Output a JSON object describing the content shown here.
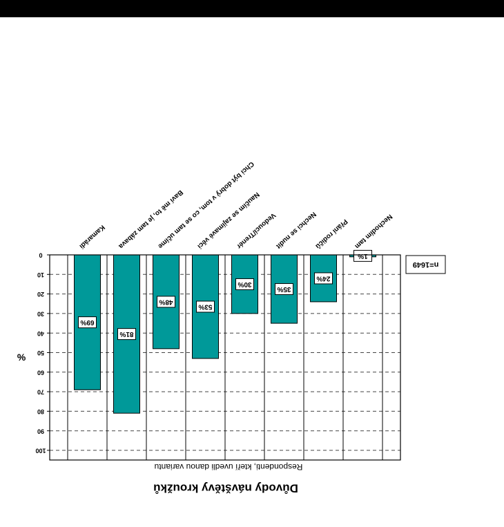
{
  "colors": {
    "bar": "#009999",
    "frame": "#000000",
    "grid": "#444444",
    "topbar": "#000000"
  },
  "chart_data": {
    "type": "bar",
    "orientation": "inverted",
    "title": "Důvody návštěvy kroužků",
    "xlabel": "Respondenti, kteří uvedli danou variantu",
    "ylabel": "%",
    "note": "n=1649",
    "ylim": [
      0,
      100
    ],
    "yticks": [
      0,
      10,
      20,
      30,
      40,
      50,
      60,
      70,
      80,
      90,
      100
    ],
    "grid": true,
    "categories": [
      "Kamarádi",
      "Baví mě to, je tam zábava",
      "Chci být dobrý v tom, co se tam učíme",
      "Naučím se zajímavé věci",
      "Vedoucí/Trenér",
      "Nechci se nudit",
      "Přání rodičů",
      "Nechodím tam"
    ],
    "values": [
      69,
      81,
      48,
      53,
      30,
      35,
      24,
      1
    ],
    "data_labels": [
      "69%",
      "81%",
      "48%",
      "53%",
      "30%",
      "35%",
      "24%",
      "1%"
    ]
  }
}
